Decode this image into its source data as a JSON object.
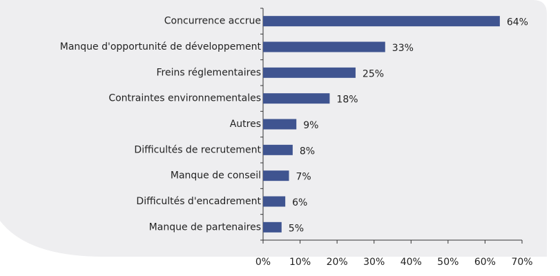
{
  "chart_data": {
    "type": "bar",
    "orientation": "horizontal",
    "categories": [
      "Concurrence accrue",
      "Manque d'opportunité de développement",
      "Freins réglementaires",
      "Contraintes environnementales",
      "Autres",
      "Difficultés de recrutement",
      "Manque de conseil",
      "Difficultés d'encadrement",
      "Manque de partenaires"
    ],
    "values": [
      64,
      33,
      25,
      18,
      9,
      8,
      7,
      6,
      5
    ],
    "value_labels": [
      "64%",
      "33%",
      "25%",
      "18%",
      "9%",
      "8%",
      "7%",
      "6%",
      "5%"
    ],
    "color": "#3f5490",
    "xlim": [
      0,
      70
    ],
    "xticks": [
      {
        "value": 0,
        "label": "0%"
      },
      {
        "value": 10,
        "label": "10%"
      },
      {
        "value": 20,
        "label": "20%"
      },
      {
        "value": 30,
        "label": "30%"
      },
      {
        "value": 40,
        "label": "40%"
      },
      {
        "value": 50,
        "label": "50%"
      },
      {
        "value": 60,
        "label": "60%"
      },
      {
        "value": 70,
        "label": "70%"
      }
    ],
    "grid": false
  }
}
